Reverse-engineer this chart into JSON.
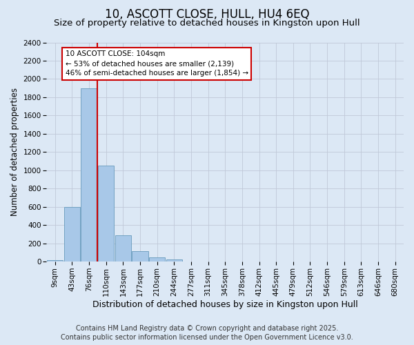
{
  "title": "10, ASCOTT CLOSE, HULL, HU4 6EQ",
  "subtitle": "Size of property relative to detached houses in Kingston upon Hull",
  "xlabel": "Distribution of detached houses by size in Kingston upon Hull",
  "ylabel": "Number of detached properties",
  "background_color": "#dce8f5",
  "plot_bg_color": "#dce8f5",
  "bar_color": "#a8c8e8",
  "bar_edge_color": "#6699bb",
  "categories": [
    "9sqm",
    "43sqm",
    "76sqm",
    "110sqm",
    "143sqm",
    "177sqm",
    "210sqm",
    "244sqm",
    "277sqm",
    "311sqm",
    "345sqm",
    "378sqm",
    "412sqm",
    "445sqm",
    "479sqm",
    "512sqm",
    "546sqm",
    "579sqm",
    "613sqm",
    "646sqm",
    "680sqm"
  ],
  "values": [
    15,
    600,
    1900,
    1050,
    290,
    115,
    50,
    25,
    0,
    0,
    0,
    5,
    0,
    0,
    0,
    0,
    0,
    0,
    0,
    0,
    0
  ],
  "ylim": [
    0,
    2400
  ],
  "yticks": [
    0,
    200,
    400,
    600,
    800,
    1000,
    1200,
    1400,
    1600,
    1800,
    2000,
    2200,
    2400
  ],
  "property_line_label": "10 ASCOTT CLOSE: 104sqm",
  "annotation_line1": "← 53% of detached houses are smaller (2,139)",
  "annotation_line2": "46% of semi-detached houses are larger (1,854) →",
  "annotation_box_facecolor": "#ffffff",
  "annotation_box_edgecolor": "#cc0000",
  "red_line_color": "#cc0000",
  "footer_line1": "Contains HM Land Registry data © Crown copyright and database right 2025.",
  "footer_line2": "Contains public sector information licensed under the Open Government Licence v3.0.",
  "grid_color": "#c0c8d8",
  "title_fontsize": 12,
  "subtitle_fontsize": 9.5,
  "ylabel_fontsize": 8.5,
  "xlabel_fontsize": 9,
  "tick_fontsize": 7.5,
  "annotation_fontsize": 7.5,
  "footer_fontsize": 7
}
